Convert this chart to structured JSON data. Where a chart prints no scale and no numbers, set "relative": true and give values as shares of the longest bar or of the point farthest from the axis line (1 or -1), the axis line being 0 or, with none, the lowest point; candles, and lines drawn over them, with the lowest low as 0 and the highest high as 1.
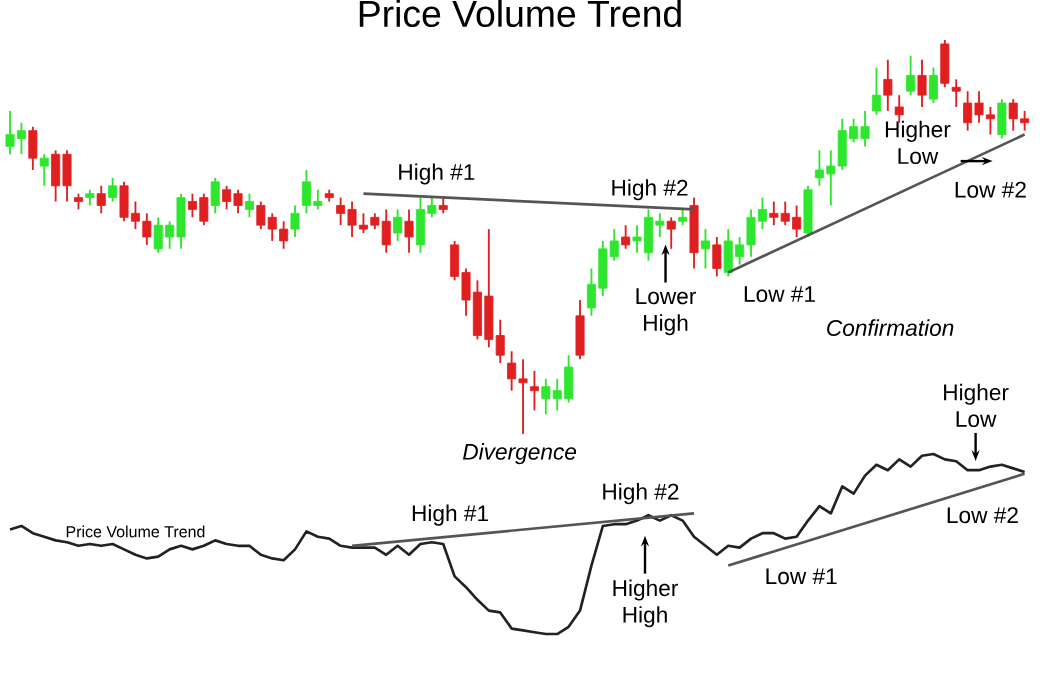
{
  "chart_data": [
    {
      "type": "candlestick",
      "title": "Price Volume Trend",
      "relative": true,
      "tick_labels": false,
      "categories": [
        null,
        null,
        null,
        null,
        null,
        null,
        null,
        null,
        null,
        null,
        null,
        null,
        null,
        null,
        null,
        null,
        null,
        null,
        null,
        null,
        null,
        null,
        null,
        null,
        null,
        null,
        null,
        null,
        null,
        null,
        null,
        null,
        null,
        null,
        null,
        null,
        null,
        null,
        null,
        null,
        null,
        null,
        null,
        null,
        null,
        null,
        null,
        null,
        null,
        null,
        null,
        null,
        null,
        null,
        null,
        null,
        null,
        null,
        null,
        null,
        null,
        null,
        null,
        null,
        null,
        null,
        null,
        null,
        null,
        null,
        null,
        null,
        null,
        null,
        null,
        null,
        null,
        null,
        null,
        null,
        null,
        null,
        null,
        null,
        null,
        null,
        null,
        null,
        null,
        null
      ],
      "ohlc": [
        [
          0.73,
          0.82,
          0.71,
          0.76
        ],
        [
          0.75,
          0.79,
          0.71,
          0.77
        ],
        [
          0.77,
          0.78,
          0.67,
          0.7
        ],
        [
          0.68,
          0.71,
          0.63,
          0.7
        ],
        [
          0.71,
          0.72,
          0.59,
          0.63
        ],
        [
          0.71,
          0.72,
          0.59,
          0.63
        ],
        [
          0.6,
          0.61,
          0.57,
          0.59
        ],
        [
          0.6,
          0.62,
          0.58,
          0.61
        ],
        [
          0.61,
          0.63,
          0.56,
          0.58
        ],
        [
          0.6,
          0.65,
          0.59,
          0.63
        ],
        [
          0.63,
          0.64,
          0.54,
          0.55
        ],
        [
          0.56,
          0.59,
          0.52,
          0.54
        ],
        [
          0.54,
          0.56,
          0.48,
          0.5
        ],
        [
          0.47,
          0.55,
          0.46,
          0.53
        ],
        [
          0.5,
          0.54,
          0.47,
          0.53
        ],
        [
          0.5,
          0.61,
          0.47,
          0.6
        ],
        [
          0.59,
          0.61,
          0.55,
          0.57
        ],
        [
          0.6,
          0.61,
          0.53,
          0.54
        ],
        [
          0.58,
          0.65,
          0.56,
          0.64
        ],
        [
          0.62,
          0.63,
          0.57,
          0.59
        ],
        [
          0.61,
          0.62,
          0.56,
          0.58
        ],
        [
          0.57,
          0.61,
          0.55,
          0.59
        ],
        [
          0.58,
          0.59,
          0.52,
          0.53
        ],
        [
          0.55,
          0.56,
          0.49,
          0.52
        ],
        [
          0.52,
          0.54,
          0.47,
          0.49
        ],
        [
          0.52,
          0.58,
          0.5,
          0.56
        ],
        [
          0.58,
          0.67,
          0.56,
          0.64
        ],
        [
          0.58,
          0.62,
          0.57,
          0.59
        ],
        [
          0.61,
          0.62,
          0.59,
          0.6
        ],
        [
          0.58,
          0.6,
          0.53,
          0.56
        ],
        [
          0.57,
          0.59,
          0.5,
          0.53
        ],
        [
          0.53,
          0.56,
          0.51,
          0.52
        ],
        [
          0.55,
          0.56,
          0.52,
          0.53
        ],
        [
          0.54,
          0.57,
          0.46,
          0.48
        ],
        [
          0.51,
          0.57,
          0.49,
          0.55
        ],
        [
          0.54,
          0.57,
          0.46,
          0.5
        ],
        [
          0.48,
          0.6,
          0.46,
          0.57
        ],
        [
          0.56,
          0.6,
          0.55,
          0.58
        ],
        [
          0.58,
          0.6,
          0.56,
          0.57
        ],
        [
          0.48,
          0.49,
          0.39,
          0.4
        ],
        [
          0.41,
          0.42,
          0.3,
          0.34
        ],
        [
          0.36,
          0.39,
          0.24,
          0.25
        ],
        [
          0.35,
          0.52,
          0.22,
          0.24
        ],
        [
          0.25,
          0.29,
          0.18,
          0.2
        ],
        [
          0.18,
          0.21,
          0.11,
          0.14
        ],
        [
          0.14,
          0.19,
          0,
          0.13
        ],
        [
          0.12,
          0.16,
          0.06,
          0.11
        ],
        [
          0.09,
          0.14,
          0.05,
          0.12
        ],
        [
          0.09,
          0.14,
          0.06,
          0.11
        ],
        [
          0.09,
          0.2,
          0.08,
          0.17
        ],
        [
          0.3,
          0.34,
          0.19,
          0.2
        ],
        [
          0.32,
          0.42,
          0.3,
          0.38
        ],
        [
          0.37,
          0.49,
          0.35,
          0.47
        ],
        [
          0.45,
          0.52,
          0.44,
          0.49
        ],
        [
          0.5,
          0.53,
          0.47,
          0.48
        ],
        [
          0.49,
          0.53,
          0.46,
          0.5
        ],
        [
          0.46,
          0.57,
          0.44,
          0.55
        ],
        [
          0.53,
          0.56,
          0.5,
          0.54
        ],
        [
          0.54,
          0.55,
          0.47,
          0.52
        ],
        [
          0.54,
          0.57,
          0.53,
          0.55
        ],
        [
          0.58,
          0.6,
          0.42,
          0.46
        ],
        [
          0.47,
          0.52,
          0.42,
          0.49
        ],
        [
          0.48,
          0.5,
          0.4,
          0.42
        ],
        [
          0.41,
          0.52,
          0.4,
          0.49
        ],
        [
          0.45,
          0.5,
          0.43,
          0.48
        ],
        [
          0.48,
          0.57,
          0.45,
          0.55
        ],
        [
          0.54,
          0.6,
          0.52,
          0.57
        ],
        [
          0.56,
          0.59,
          0.53,
          0.55
        ],
        [
          0.56,
          0.59,
          0.53,
          0.54
        ],
        [
          0.55,
          0.58,
          0.5,
          0.52
        ],
        [
          0.51,
          0.63,
          0.5,
          0.62
        ],
        [
          0.65,
          0.72,
          0.63,
          0.67
        ],
        [
          0.66,
          0.72,
          0.58,
          0.68
        ],
        [
          0.68,
          0.8,
          0.67,
          0.77
        ],
        [
          0.75,
          0.8,
          0.74,
          0.78
        ],
        [
          0.75,
          0.82,
          0.73,
          0.78
        ],
        [
          0.82,
          0.93,
          0.81,
          0.86
        ],
        [
          0.9,
          0.95,
          0.82,
          0.86
        ],
        [
          0.83,
          0.86,
          0.79,
          0.81
        ],
        [
          0.87,
          0.96,
          0.86,
          0.91
        ],
        [
          0.91,
          0.95,
          0.83,
          0.86
        ],
        [
          0.85,
          0.93,
          0.84,
          0.91
        ],
        [
          0.99,
          1,
          0.88,
          0.89
        ],
        [
          0.88,
          0.9,
          0.83,
          0.87
        ],
        [
          0.84,
          0.87,
          0.77,
          0.79
        ],
        [
          0.84,
          0.87,
          0.79,
          0.81
        ],
        [
          0.81,
          0.83,
          0.76,
          0.8
        ],
        [
          0.76,
          0.85,
          0.75,
          0.84
        ],
        [
          0.84,
          0.85,
          0.77,
          0.8
        ],
        [
          0.8,
          0.82,
          0.77,
          0.79
        ]
      ],
      "colors": [
        "#2ee62e",
        "#2ee62e",
        "#e02020",
        "#2ee62e",
        "#e02020",
        "#e02020",
        "#e02020",
        "#2ee62e",
        "#e02020",
        "#2ee62e",
        "#e02020",
        "#e02020",
        "#e02020",
        "#2ee62e",
        "#2ee62e",
        "#2ee62e",
        "#e02020",
        "#e02020",
        "#2ee62e",
        "#e02020",
        "#e02020",
        "#2ee62e",
        "#e02020",
        "#e02020",
        "#e02020",
        "#2ee62e",
        "#2ee62e",
        "#2ee62e",
        "#e02020",
        "#e02020",
        "#e02020",
        "#e02020",
        "#e02020",
        "#e02020",
        "#2ee62e",
        "#e02020",
        "#2ee62e",
        "#2ee62e",
        "#e02020",
        "#e02020",
        "#e02020",
        "#e02020",
        "#e02020",
        "#e02020",
        "#e02020",
        "#e02020",
        "#e02020",
        "#2ee62e",
        "#2ee62e",
        "#2ee62e",
        "#e02020",
        "#2ee62e",
        "#2ee62e",
        "#2ee62e",
        "#e02020",
        "#2ee62e",
        "#2ee62e",
        "#2ee62e",
        "#e02020",
        "#2ee62e",
        "#e02020",
        "#2ee62e",
        "#e02020",
        "#2ee62e",
        "#2ee62e",
        "#2ee62e",
        "#2ee62e",
        "#e02020",
        "#e02020",
        "#e02020",
        "#2ee62e",
        "#2ee62e",
        "#2ee62e",
        "#2ee62e",
        "#2ee62e",
        "#2ee62e",
        "#2ee62e",
        "#e02020",
        "#e02020",
        "#2ee62e",
        "#e02020",
        "#2ee62e",
        "#e02020",
        "#e02020",
        "#e02020",
        "#e02020",
        "#e02020",
        "#2ee62e",
        "#e02020",
        "#e02020"
      ],
      "series": [
        {
          "type": "line",
          "color": "#555555",
          "values": [
            null,
            null,
            null,
            null,
            null,
            null,
            null,
            null,
            null,
            null,
            null,
            null,
            null,
            null,
            null,
            null,
            null,
            null,
            null,
            null,
            null,
            null,
            null,
            null,
            null,
            null,
            null,
            null,
            null,
            null,
            null,
            0.61,
            null,
            null,
            null,
            null,
            null,
            null,
            null,
            null,
            null,
            null,
            null,
            null,
            null,
            null,
            null,
            null,
            null,
            null,
            null,
            null,
            null,
            null,
            null,
            null,
            null,
            null,
            null,
            null,
            0.57,
            null,
            null,
            null,
            null,
            null,
            null,
            null,
            null,
            null,
            null,
            null,
            null,
            null,
            null,
            null,
            null,
            null,
            null,
            null,
            null,
            null,
            null,
            null,
            null,
            null,
            null,
            null,
            null,
            null
          ]
        },
        {
          "type": "line",
          "color": "#555555",
          "values": [
            null,
            null,
            null,
            null,
            null,
            null,
            null,
            null,
            null,
            null,
            null,
            null,
            null,
            null,
            null,
            null,
            null,
            null,
            null,
            null,
            null,
            null,
            null,
            null,
            null,
            null,
            null,
            null,
            null,
            null,
            null,
            null,
            null,
            null,
            null,
            null,
            null,
            null,
            null,
            null,
            null,
            null,
            null,
            null,
            null,
            null,
            null,
            null,
            null,
            null,
            null,
            null,
            null,
            null,
            null,
            null,
            null,
            null,
            null,
            null,
            null,
            null,
            null,
            0.41,
            null,
            null,
            null,
            null,
            null,
            null,
            null,
            null,
            null,
            null,
            null,
            null,
            null,
            null,
            null,
            null,
            null,
            null,
            null,
            null,
            null,
            null,
            null,
            null,
            null,
            0.76
          ]
        }
      ],
      "annotations": [
        "High #1",
        "High #2",
        "Lower High",
        "Low #1",
        "Confirmation",
        "Higher Low",
        "Low #2",
        "Divergence"
      ]
    },
    {
      "type": "line",
      "relative": true,
      "tick_labels": false,
      "categories": [
        null,
        null,
        null,
        null,
        null,
        null,
        null,
        null,
        null,
        null,
        null,
        null,
        null,
        null,
        null,
        null,
        null,
        null,
        null,
        null,
        null,
        null,
        null,
        null,
        null,
        null,
        null,
        null,
        null,
        null,
        null,
        null,
        null,
        null,
        null,
        null,
        null,
        null,
        null,
        null,
        null,
        null,
        null,
        null,
        null,
        null,
        null,
        null,
        null,
        null,
        null,
        null,
        null,
        null,
        null,
        null,
        null,
        null,
        null,
        null,
        null,
        null,
        null,
        null,
        null,
        null,
        null,
        null,
        null,
        null,
        null,
        null,
        null,
        null,
        null,
        null,
        null,
        null,
        null,
        null,
        null,
        null,
        null,
        null,
        null,
        null,
        null,
        null,
        null,
        null
      ],
      "series": [
        {
          "name": "Price Volume Trend",
          "color": "#222222",
          "values": [
            0.58,
            0.6,
            0.56,
            0.54,
            0.52,
            0.51,
            0.49,
            0.5,
            0.49,
            0.5,
            0.47,
            0.44,
            0.42,
            0.43,
            0.47,
            0.49,
            0.47,
            0.49,
            0.52,
            0.5,
            0.49,
            0.49,
            0.44,
            0.42,
            0.41,
            0.47,
            0.57,
            0.54,
            0.53,
            0.49,
            0.48,
            0.48,
            0.48,
            0.44,
            0.49,
            0.44,
            0.5,
            0.51,
            0.5,
            0.32,
            0.26,
            0.19,
            0.13,
            0.12,
            0.03,
            0.02,
            0.01,
            0,
            0,
            0.04,
            0.13,
            0.38,
            0.6,
            0.61,
            0.61,
            0.63,
            0.66,
            0.63,
            0.66,
            0.63,
            0.54,
            0.49,
            0.44,
            0.49,
            0.48,
            0.53,
            0.56,
            0.56,
            0.53,
            0.54,
            0.63,
            0.71,
            0.67,
            0.82,
            0.78,
            0.88,
            0.94,
            0.91,
            0.97,
            0.93,
            0.99,
            1,
            0.97,
            0.96,
            0.91,
            0.91,
            0.93,
            0.94,
            0.92,
            0.9
          ]
        },
        {
          "type": "line",
          "color": "#555555",
          "values": [
            null,
            null,
            null,
            null,
            null,
            null,
            null,
            null,
            null,
            null,
            null,
            null,
            null,
            null,
            null,
            null,
            null,
            null,
            null,
            null,
            null,
            null,
            null,
            null,
            null,
            null,
            null,
            null,
            null,
            null,
            0.49,
            null,
            null,
            null,
            null,
            null,
            null,
            null,
            null,
            null,
            null,
            null,
            null,
            null,
            null,
            null,
            null,
            null,
            null,
            null,
            null,
            null,
            null,
            null,
            null,
            null,
            null,
            null,
            null,
            null,
            0.67,
            null,
            null,
            null,
            null,
            null,
            null,
            null,
            null,
            null,
            null,
            null,
            null,
            null,
            null,
            null,
            null,
            null,
            null,
            null,
            null,
            null,
            null,
            null,
            null,
            null,
            null,
            null,
            null,
            null
          ]
        },
        {
          "type": "line",
          "color": "#555555",
          "values": [
            null,
            null,
            null,
            null,
            null,
            null,
            null,
            null,
            null,
            null,
            null,
            null,
            null,
            null,
            null,
            null,
            null,
            null,
            null,
            null,
            null,
            null,
            null,
            null,
            null,
            null,
            null,
            null,
            null,
            null,
            null,
            null,
            null,
            null,
            null,
            null,
            null,
            null,
            null,
            null,
            null,
            null,
            null,
            null,
            null,
            null,
            null,
            null,
            null,
            null,
            null,
            null,
            null,
            null,
            null,
            null,
            null,
            null,
            null,
            null,
            null,
            null,
            null,
            0.38,
            null,
            null,
            null,
            null,
            null,
            null,
            null,
            null,
            null,
            null,
            null,
            null,
            null,
            null,
            null,
            null,
            null,
            null,
            null,
            null,
            null,
            null,
            null,
            null,
            null,
            0.89
          ]
        }
      ],
      "annotations": [
        "High #1",
        "High #2",
        "Higher High",
        "Low #1",
        "Low #2",
        "Higher Low"
      ]
    }
  ]
}
